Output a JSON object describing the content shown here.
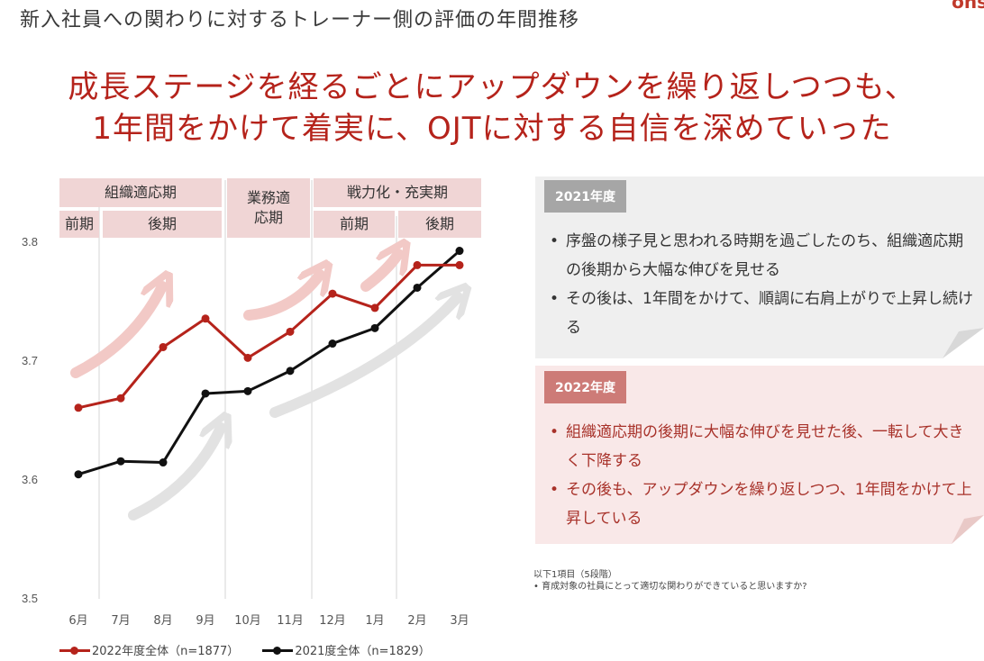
{
  "page_title": "新入社員への関わりに対するトレーナー側の評価の年間推移",
  "logo_fragment": "ons",
  "headline": {
    "line1": "成長ステージを経るごとにアップダウンを繰り返しつつも、",
    "line2": "1年間をかけて着実に、OJTに対する自信を深めていった"
  },
  "phases": {
    "soshiki": "組織適応期",
    "zenki1": "前期",
    "kouki1": "後期",
    "gyomu": "業務適\n応期",
    "senryoku": "戦力化・充実期",
    "zenki2": "前期",
    "kouki2": "後期"
  },
  "chart_data": {
    "type": "line",
    "categories": [
      "6月",
      "7月",
      "8月",
      "9月",
      "10月",
      "11月",
      "12月",
      "1月",
      "2月",
      "3月"
    ],
    "series": [
      {
        "name": "2022年度全体（n=1877）",
        "color": "#b5231b",
        "values": [
          3.66,
          3.668,
          3.711,
          3.735,
          3.702,
          3.724,
          3.756,
          3.744,
          3.78,
          3.78
        ]
      },
      {
        "name": "2021度全体（n=1829）",
        "color": "#111111",
        "values": [
          3.604,
          3.615,
          3.614,
          3.672,
          3.674,
          3.691,
          3.714,
          3.727,
          3.761,
          3.792
        ]
      }
    ],
    "yticks": [
      "3.5",
      "3.6",
      "3.7",
      "3.8"
    ],
    "ylim": [
      3.5,
      3.8
    ],
    "grid": false,
    "legend": "bottom"
  },
  "panel_2021": {
    "tag": "2021年度",
    "bullets": [
      "序盤の様子見と思われる時期を過ごしたのち、組織適応期の後期から大幅な伸びを見せる",
      "その後は、1年間をかけて、順調に右肩上がりで上昇し続ける"
    ]
  },
  "panel_2022": {
    "tag": "2022年度",
    "bullets": [
      "組織適応期の後期に大幅な伸びを見せた後、一転して大きく下降する",
      "その後も、アップダウンを繰り返しつつ、1年間をかけて上昇している"
    ]
  },
  "footnote": {
    "line1": "以下1項目（5段階）",
    "line2": "• 育成対象の社員にとって適切な関わりができていると思いますか?"
  },
  "colors": {
    "accent": "#b5231b",
    "phase_bg": "#f0d5d5",
    "panel_2021_bg": "#efefef",
    "panel_2022_bg": "#f9e8e8",
    "tag_2021": "#a6a6a6",
    "tag_2022": "#cd7b77"
  }
}
